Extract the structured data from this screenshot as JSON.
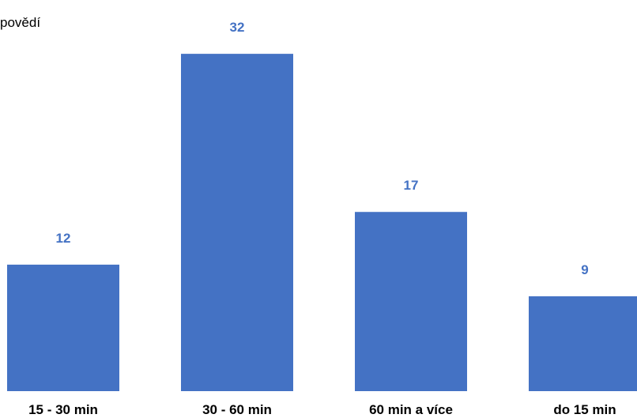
{
  "chart_data": {
    "type": "bar",
    "categories": [
      "15 - 30 min",
      "30 - 60 min",
      "60 min a více",
      "do 15 min"
    ],
    "series": [
      {
        "name": "povědí",
        "values": [
          12,
          32,
          17,
          9
        ]
      }
    ],
    "ylim": [
      0,
      34
    ],
    "grid": false,
    "legend": "top-left",
    "colors": {
      "bar": "#4472C4",
      "label": "#4472C4"
    }
  }
}
